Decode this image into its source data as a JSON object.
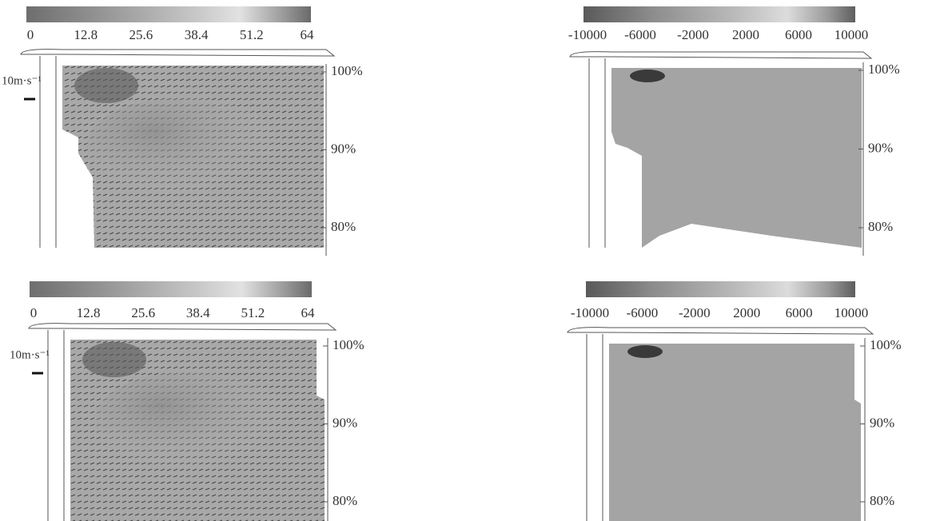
{
  "panels": [
    {
      "colorbar_ticks": [
        0,
        12.8,
        25.6,
        38.4,
        51.2,
        64
      ],
      "scale_label": "10m·s⁻¹",
      "height_ticks": [
        {
          "value": 100,
          "label": "100%"
        },
        {
          "value": 90,
          "label": "90%"
        },
        {
          "value": 80,
          "label": "80%"
        }
      ]
    },
    {
      "colorbar_ticks": [
        -10000,
        -6000,
        -2000,
        2000,
        6000,
        10000
      ],
      "height_ticks": [
        {
          "value": 100,
          "label": "100%"
        },
        {
          "value": 90,
          "label": "90%"
        },
        {
          "value": 80,
          "label": "80%"
        }
      ]
    },
    {
      "colorbar_ticks": [
        0,
        12.8,
        25.6,
        38.4,
        51.2,
        64
      ],
      "scale_label": "10m·s⁻¹",
      "height_ticks": [
        {
          "value": 100,
          "label": "100%"
        },
        {
          "value": 90,
          "label": "90%"
        },
        {
          "value": 80,
          "label": "80%"
        }
      ]
    },
    {
      "colorbar_ticks": [
        -10000,
        -6000,
        -2000,
        2000,
        6000,
        10000
      ],
      "height_ticks": [
        {
          "value": 100,
          "label": "100%"
        },
        {
          "value": 90,
          "label": "90%"
        },
        {
          "value": 80,
          "label": "80%"
        }
      ]
    }
  ]
}
